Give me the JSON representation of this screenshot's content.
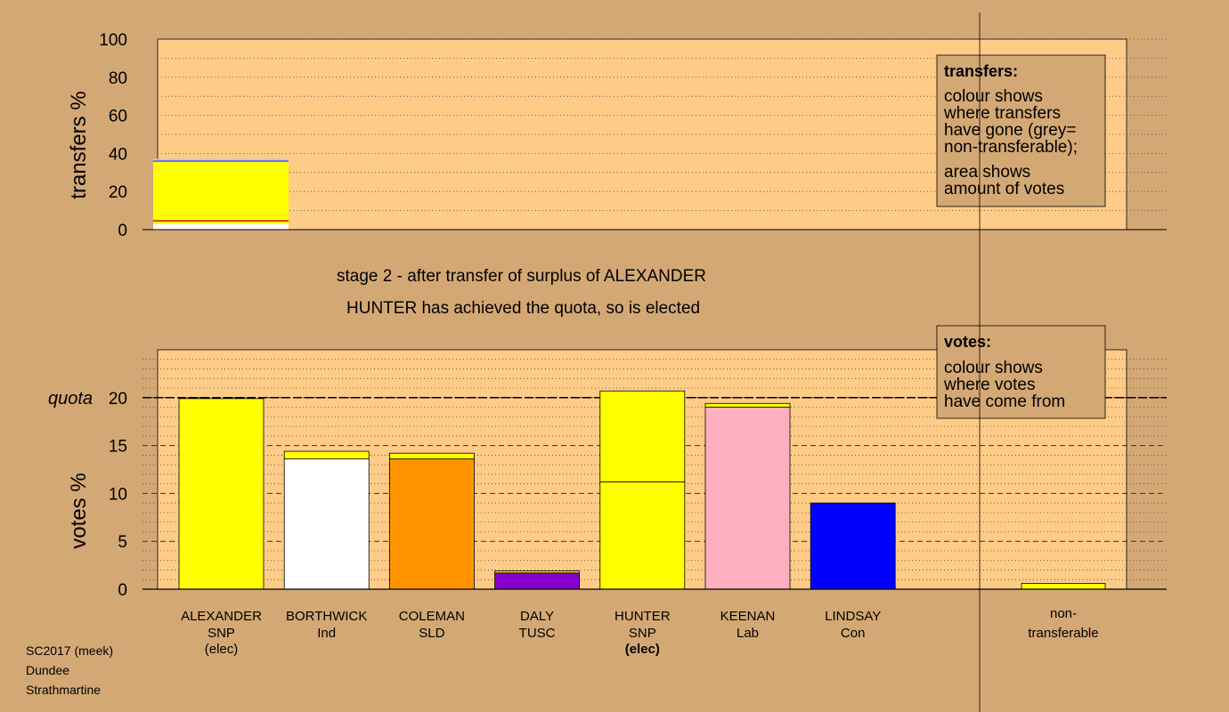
{
  "chart_data": [
    {
      "type": "bar",
      "stacked": true,
      "ylabel": "transfers %",
      "ylim": [
        0,
        100
      ],
      "yticks": [
        0,
        20,
        40,
        60,
        80,
        100
      ],
      "grid": "dotted",
      "segments": [
        {
          "color": "#ffffff",
          "value": 3.0
        },
        {
          "color": "#ffff00",
          "value": 1.3
        },
        {
          "color": "#cc0000",
          "value": 0.7
        },
        {
          "color": "#ffff00",
          "value": 30.5
        },
        {
          "color": "#7070ff",
          "value": 1.0
        },
        {
          "color": "#c8c8c8",
          "value": 0.7
        }
      ],
      "legend": {
        "title": "transfers:",
        "lines": [
          "colour shows",
          "where transfers",
          "have gone (grey=",
          "non-transferable);"
        ],
        "lines2": [
          "area shows",
          "amount of votes"
        ],
        "placement": "top-right"
      }
    },
    {
      "type": "bar",
      "stacked": true,
      "ylabel": "votes %",
      "ylim": [
        0,
        25
      ],
      "yticks": [
        0,
        5,
        10,
        15,
        20
      ],
      "quota": 20,
      "quota_label": "quota",
      "grid": "dotted",
      "candidates": [
        {
          "name": "ALEXANDER",
          "party": "SNP",
          "note": "(elec)",
          "note_bold": false,
          "segments": [
            {
              "color": "#ffff00",
              "value": 19.9
            }
          ]
        },
        {
          "name": "BORTHWICK",
          "party": "Ind",
          "note": "",
          "note_bold": false,
          "segments": [
            {
              "color": "#ffffff",
              "value": 13.6
            },
            {
              "color": "#ffff00",
              "value": 0.8
            }
          ]
        },
        {
          "name": "COLEMAN",
          "party": "SLD",
          "note": "",
          "note_bold": false,
          "segments": [
            {
              "color": "#ff9400",
              "value": 13.6
            },
            {
              "color": "#ffff00",
              "value": 0.6
            }
          ]
        },
        {
          "name": "DALY",
          "party": "TUSC",
          "note": "",
          "note_bold": false,
          "segments": [
            {
              "color": "#8800cc",
              "value": 1.7
            },
            {
              "color": "#ffff00",
              "value": 0.2
            }
          ]
        },
        {
          "name": "HUNTER",
          "party": "SNP",
          "note": "(elec)",
          "note_bold": true,
          "segments": [
            {
              "color": "#ffff00",
              "value": 11.2
            },
            {
              "color": "#ffff00",
              "value": 9.5
            }
          ]
        },
        {
          "name": "KEENAN",
          "party": "Lab",
          "note": "",
          "note_bold": false,
          "segments": [
            {
              "color": "#ffb0c0",
              "value": 19.0
            },
            {
              "color": "#ffff00",
              "value": 0.4
            }
          ]
        },
        {
          "name": "LINDSAY",
          "party": "Con",
          "note": "",
          "note_bold": false,
          "segments": [
            {
              "color": "#0000ff",
              "value": 9.0
            }
          ]
        }
      ],
      "nontransferable": {
        "name": "non-",
        "party": "transferable",
        "segments": [
          {
            "color": "#ffff00",
            "value": 0.6
          }
        ]
      },
      "legend": {
        "title": "votes:",
        "lines": [
          "colour shows",
          "where votes",
          "have come from"
        ],
        "placement": "top-right"
      }
    }
  ],
  "stage_text": "stage 2 - after transfer of surplus of ALEXANDER",
  "elected_text": "HUNTER has achieved the quota, so is elected",
  "footer": [
    "SC2017 (meek)",
    "Dundee",
    "Strathmartine"
  ],
  "colors": {
    "background": "#d4a874",
    "plot_bg": "#ffcc88"
  }
}
